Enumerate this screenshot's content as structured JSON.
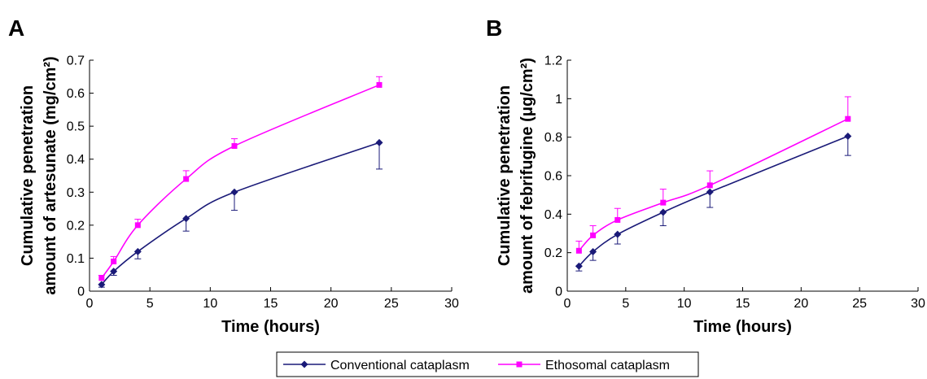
{
  "legend": {
    "entries": [
      {
        "label": "Conventional cataplasm",
        "color": "#1a1a78",
        "marker": "diamond"
      },
      {
        "label": "Ethosomal cataplasm",
        "color": "#ff00ff",
        "marker": "square"
      }
    ]
  },
  "chart_data": [
    {
      "type": "line",
      "panel_label": "A",
      "xlabel": "Time (hours)",
      "ylabel_lines": [
        "Cumulative penetration",
        "amount of artesunate (mg/cm²)"
      ],
      "xlim": [
        0,
        30
      ],
      "ylim": [
        0,
        0.7
      ],
      "xticks": [
        "0",
        "5",
        "10",
        "15",
        "20",
        "25",
        "30"
      ],
      "yticks": [
        "0",
        "0.1",
        "0.2",
        "0.3",
        "0.4",
        "0.5",
        "0.6",
        "0.7"
      ],
      "grid": false,
      "series": [
        {
          "name": "Conventional cataplasm",
          "color": "#1a1a78",
          "marker": "diamond",
          "x": [
            1,
            2,
            4,
            8,
            12,
            24
          ],
          "y": [
            0.02,
            0.06,
            0.12,
            0.22,
            0.3,
            0.45
          ],
          "err": [
            0.008,
            0.012,
            0.022,
            0.038,
            0.055,
            0.08
          ]
        },
        {
          "name": "Ethosomal cataplasm",
          "color": "#ff00ff",
          "marker": "square",
          "x": [
            1,
            2,
            4,
            8,
            12,
            24
          ],
          "y": [
            0.04,
            0.09,
            0.2,
            0.34,
            0.44,
            0.625
          ],
          "err": [
            0.008,
            0.015,
            0.018,
            0.025,
            0.022,
            0.025
          ]
        }
      ]
    },
    {
      "type": "line",
      "panel_label": "B",
      "xlabel": "Time (hours)",
      "ylabel_lines": [
        "Cumulative penetration",
        "amount of febrifugine (μg/cm²)"
      ],
      "xlim": [
        0,
        30
      ],
      "ylim": [
        0,
        1.2
      ],
      "xticks": [
        "0",
        "5",
        "10",
        "15",
        "20",
        "25",
        "30"
      ],
      "yticks": [
        "0",
        "0.2",
        "0.4",
        "0.6",
        "0.8",
        "1",
        "1.2"
      ],
      "grid": false,
      "series": [
        {
          "name": "Conventional cataplasm",
          "color": "#1a1a78",
          "marker": "diamond",
          "x": [
            1,
            2.2,
            4.3,
            8.2,
            12.2,
            24
          ],
          "y": [
            0.13,
            0.205,
            0.295,
            0.41,
            0.515,
            0.805
          ],
          "err": [
            0.025,
            0.045,
            0.05,
            0.07,
            0.08,
            0.1
          ]
        },
        {
          "name": "Ethosomal cataplasm",
          "color": "#ff00ff",
          "marker": "square",
          "x": [
            1,
            2.2,
            4.3,
            8.2,
            12.2,
            24
          ],
          "y": [
            0.21,
            0.29,
            0.37,
            0.46,
            0.55,
            0.895
          ],
          "err": [
            0.05,
            0.05,
            0.06,
            0.07,
            0.075,
            0.115
          ]
        }
      ]
    }
  ]
}
